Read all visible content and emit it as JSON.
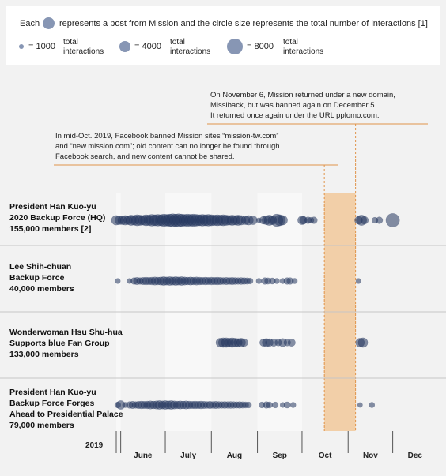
{
  "legend": {
    "each": "Each",
    "text": "represents a post from Mission and the circle size represents the total number of interactions [1]",
    "items": [
      {
        "size": 1000,
        "value": "= 1000",
        "line1": "total",
        "line2": "interactions"
      },
      {
        "size": 4000,
        "value": "= 4000",
        "line1": "total",
        "line2": "interactions"
      },
      {
        "size": 8000,
        "value": "= 8000",
        "line1": "total",
        "line2": "interactions"
      }
    ]
  },
  "annotations": {
    "november": [
      "On November 6, Mission returned under a new domain,",
      "Missiback, but was banned again on December 5.",
      "It returned once again under the URL pplomo.com."
    ],
    "october": [
      "In mid-Oct. 2019, Facebook banned Mission sites “mission-tw.com”",
      "and “new.mission.com”; old content can no longer be found through",
      "Facebook search, and new content cannot be shared."
    ]
  },
  "colors": {
    "dot": "#24365e",
    "ban_band": "#f2cfa8",
    "ban_line": "#e0944a",
    "month_band": "#f8f8f8",
    "background": "#f2f2f2"
  },
  "chart_data": {
    "type": "scatter",
    "x_unit": "date",
    "year_label": "2019",
    "months": [
      "June",
      "July",
      "Aug",
      "Sep",
      "Oct",
      "Nov",
      "Dec"
    ],
    "xlim": [
      "2019-05-29",
      "2019-12-31"
    ],
    "ban_period": {
      "start": "2019-10-16",
      "end": "2019-11-06"
    },
    "rows": [
      {
        "lines": [
          "President Han Kuo-yu",
          "2020 Backup Force (HQ)",
          "155,000 members [2]"
        ],
        "posts": [
          {
            "date": "2019-05-29",
            "size": 3000
          },
          {
            "date": "2019-05-31",
            "size": 2500
          },
          {
            "date": "2019-06-02",
            "size": 2500
          },
          {
            "date": "2019-06-04",
            "size": 3000
          },
          {
            "date": "2019-06-06",
            "size": 2500
          },
          {
            "date": "2019-06-08",
            "size": 3500
          },
          {
            "date": "2019-06-10",
            "size": 3000
          },
          {
            "date": "2019-06-12",
            "size": 4000
          },
          {
            "date": "2019-06-14",
            "size": 3500
          },
          {
            "date": "2019-06-16",
            "size": 3000
          },
          {
            "date": "2019-06-18",
            "size": 4000
          },
          {
            "date": "2019-06-20",
            "size": 3500
          },
          {
            "date": "2019-06-22",
            "size": 4500
          },
          {
            "date": "2019-06-24",
            "size": 4000
          },
          {
            "date": "2019-06-26",
            "size": 4500
          },
          {
            "date": "2019-06-28",
            "size": 4000
          },
          {
            "date": "2019-06-30",
            "size": 5000
          },
          {
            "date": "2019-07-02",
            "size": 4500
          },
          {
            "date": "2019-07-04",
            "size": 5000
          },
          {
            "date": "2019-07-06",
            "size": 5500
          },
          {
            "date": "2019-07-08",
            "size": 5000
          },
          {
            "date": "2019-07-10",
            "size": 5500
          },
          {
            "date": "2019-07-12",
            "size": 5000
          },
          {
            "date": "2019-07-14",
            "size": 4500
          },
          {
            "date": "2019-07-16",
            "size": 5000
          },
          {
            "date": "2019-07-18",
            "size": 4500
          },
          {
            "date": "2019-07-20",
            "size": 5000
          },
          {
            "date": "2019-07-22",
            "size": 4500
          },
          {
            "date": "2019-07-24",
            "size": 4000
          },
          {
            "date": "2019-07-26",
            "size": 4500
          },
          {
            "date": "2019-07-28",
            "size": 4000
          },
          {
            "date": "2019-07-30",
            "size": 4500
          },
          {
            "date": "2019-08-01",
            "size": 4000
          },
          {
            "date": "2019-08-03",
            "size": 3500
          },
          {
            "date": "2019-08-05",
            "size": 4000
          },
          {
            "date": "2019-08-07",
            "size": 3500
          },
          {
            "date": "2019-08-09",
            "size": 4000
          },
          {
            "date": "2019-08-11",
            "size": 3500
          },
          {
            "date": "2019-08-13",
            "size": 3000
          },
          {
            "date": "2019-08-15",
            "size": 3500
          },
          {
            "date": "2019-08-17",
            "size": 3000
          },
          {
            "date": "2019-08-19",
            "size": 3500
          },
          {
            "date": "2019-08-21",
            "size": 3000
          },
          {
            "date": "2019-08-24",
            "size": 2500
          },
          {
            "date": "2019-08-26",
            "size": 3000
          },
          {
            "date": "2019-08-29",
            "size": 2500
          },
          {
            "date": "2019-09-02",
            "size": 800
          },
          {
            "date": "2019-09-05",
            "size": 2000
          },
          {
            "date": "2019-09-07",
            "size": 2500
          },
          {
            "date": "2019-09-09",
            "size": 3500
          },
          {
            "date": "2019-09-11",
            "size": 2500
          },
          {
            "date": "2019-09-14",
            "size": 5000
          },
          {
            "date": "2019-09-16",
            "size": 4000
          },
          {
            "date": "2019-09-18",
            "size": 3000
          },
          {
            "date": "2019-10-01",
            "size": 2500
          },
          {
            "date": "2019-10-02",
            "size": 2000
          },
          {
            "date": "2019-10-05",
            "size": 1500
          },
          {
            "date": "2019-10-07",
            "size": 1200
          },
          {
            "date": "2019-10-09",
            "size": 1500
          },
          {
            "date": "2019-11-08",
            "size": 2000
          },
          {
            "date": "2019-11-10",
            "size": 3500
          },
          {
            "date": "2019-11-12",
            "size": 2000
          },
          {
            "date": "2019-11-19",
            "size": 1200
          },
          {
            "date": "2019-11-22",
            "size": 1500
          },
          {
            "date": "2019-12-01",
            "size": 6000
          }
        ]
      },
      {
        "lines": [
          "Lee Shih-chuan",
          "Backup Force",
          "40,000 members"
        ],
        "posts": [
          {
            "date": "2019-05-30",
            "size": 900
          },
          {
            "date": "2019-06-07",
            "size": 900
          },
          {
            "date": "2019-06-10",
            "size": 1500
          },
          {
            "date": "2019-06-12",
            "size": 1800
          },
          {
            "date": "2019-06-14",
            "size": 1500
          },
          {
            "date": "2019-06-16",
            "size": 1800
          },
          {
            "date": "2019-06-18",
            "size": 2000
          },
          {
            "date": "2019-06-20",
            "size": 1800
          },
          {
            "date": "2019-06-22",
            "size": 2000
          },
          {
            "date": "2019-06-24",
            "size": 2200
          },
          {
            "date": "2019-06-26",
            "size": 2000
          },
          {
            "date": "2019-06-28",
            "size": 2200
          },
          {
            "date": "2019-06-30",
            "size": 2500
          },
          {
            "date": "2019-07-02",
            "size": 2200
          },
          {
            "date": "2019-07-04",
            "size": 2500
          },
          {
            "date": "2019-07-06",
            "size": 2200
          },
          {
            "date": "2019-07-08",
            "size": 2500
          },
          {
            "date": "2019-07-10",
            "size": 2200
          },
          {
            "date": "2019-07-12",
            "size": 2500
          },
          {
            "date": "2019-07-14",
            "size": 2200
          },
          {
            "date": "2019-07-16",
            "size": 2000
          },
          {
            "date": "2019-07-18",
            "size": 2200
          },
          {
            "date": "2019-07-20",
            "size": 2000
          },
          {
            "date": "2019-07-22",
            "size": 2200
          },
          {
            "date": "2019-07-24",
            "size": 2000
          },
          {
            "date": "2019-07-26",
            "size": 1800
          },
          {
            "date": "2019-07-28",
            "size": 2000
          },
          {
            "date": "2019-07-30",
            "size": 1800
          },
          {
            "date": "2019-08-01",
            "size": 2000
          },
          {
            "date": "2019-08-03",
            "size": 1800
          },
          {
            "date": "2019-08-05",
            "size": 2000
          },
          {
            "date": "2019-08-07",
            "size": 1800
          },
          {
            "date": "2019-08-09",
            "size": 1600
          },
          {
            "date": "2019-08-11",
            "size": 1800
          },
          {
            "date": "2019-08-13",
            "size": 1600
          },
          {
            "date": "2019-08-15",
            "size": 1800
          },
          {
            "date": "2019-08-17",
            "size": 1600
          },
          {
            "date": "2019-08-19",
            "size": 1500
          },
          {
            "date": "2019-08-21",
            "size": 1600
          },
          {
            "date": "2019-08-23",
            "size": 1500
          },
          {
            "date": "2019-08-25",
            "size": 1400
          },
          {
            "date": "2019-08-27",
            "size": 1200
          },
          {
            "date": "2019-09-02",
            "size": 1000
          },
          {
            "date": "2019-09-06",
            "size": 1500
          },
          {
            "date": "2019-09-08",
            "size": 1400
          },
          {
            "date": "2019-09-11",
            "size": 1300
          },
          {
            "date": "2019-09-14",
            "size": 1000
          },
          {
            "date": "2019-09-18",
            "size": 1000
          },
          {
            "date": "2019-09-21",
            "size": 1500
          },
          {
            "date": "2019-09-23",
            "size": 1500
          },
          {
            "date": "2019-09-26",
            "size": 1000
          },
          {
            "date": "2019-11-08",
            "size": 900
          }
        ]
      },
      {
        "lines": [
          "Wonderwoman Hsu Shu-hua",
          "Supports blue Fan Group",
          "133,000 members"
        ],
        "posts": [
          {
            "date": "2019-08-07",
            "size": 2500
          },
          {
            "date": "2019-08-09",
            "size": 3000
          },
          {
            "date": "2019-08-11",
            "size": 3000
          },
          {
            "date": "2019-08-13",
            "size": 2500
          },
          {
            "date": "2019-08-15",
            "size": 3000
          },
          {
            "date": "2019-08-17",
            "size": 2500
          },
          {
            "date": "2019-08-19",
            "size": 2200
          },
          {
            "date": "2019-08-21",
            "size": 2500
          },
          {
            "date": "2019-08-23",
            "size": 2000
          },
          {
            "date": "2019-09-05",
            "size": 1800
          },
          {
            "date": "2019-09-07",
            "size": 2200
          },
          {
            "date": "2019-09-09",
            "size": 2000
          },
          {
            "date": "2019-09-12",
            "size": 1800
          },
          {
            "date": "2019-09-15",
            "size": 1500
          },
          {
            "date": "2019-09-18",
            "size": 2200
          },
          {
            "date": "2019-09-21",
            "size": 1500
          },
          {
            "date": "2019-09-24",
            "size": 1800
          },
          {
            "date": "2019-11-09",
            "size": 2500
          },
          {
            "date": "2019-11-11",
            "size": 3000
          }
        ]
      },
      {
        "lines": [
          "President Han Kuo-yu",
          "Backup Force Forges",
          "Ahead to Presidential Palace",
          "79,000 members"
        ],
        "posts": [
          {
            "date": "2019-05-30",
            "size": 1200
          },
          {
            "date": "2019-06-01",
            "size": 2500
          },
          {
            "date": "2019-06-04",
            "size": 1000
          },
          {
            "date": "2019-06-07",
            "size": 1500
          },
          {
            "date": "2019-06-09",
            "size": 1800
          },
          {
            "date": "2019-06-11",
            "size": 1500
          },
          {
            "date": "2019-06-13",
            "size": 1800
          },
          {
            "date": "2019-06-15",
            "size": 2000
          },
          {
            "date": "2019-06-17",
            "size": 1800
          },
          {
            "date": "2019-06-19",
            "size": 2000
          },
          {
            "date": "2019-06-21",
            "size": 2200
          },
          {
            "date": "2019-06-23",
            "size": 2000
          },
          {
            "date": "2019-06-25",
            "size": 2200
          },
          {
            "date": "2019-06-27",
            "size": 2500
          },
          {
            "date": "2019-06-29",
            "size": 2200
          },
          {
            "date": "2019-07-01",
            "size": 2500
          },
          {
            "date": "2019-07-03",
            "size": 2200
          },
          {
            "date": "2019-07-05",
            "size": 2500
          },
          {
            "date": "2019-07-07",
            "size": 2200
          },
          {
            "date": "2019-07-09",
            "size": 2000
          },
          {
            "date": "2019-07-11",
            "size": 2200
          },
          {
            "date": "2019-07-13",
            "size": 2000
          },
          {
            "date": "2019-07-15",
            "size": 2200
          },
          {
            "date": "2019-07-17",
            "size": 2000
          },
          {
            "date": "2019-07-19",
            "size": 1800
          },
          {
            "date": "2019-07-21",
            "size": 2000
          },
          {
            "date": "2019-07-23",
            "size": 1800
          },
          {
            "date": "2019-07-25",
            "size": 2000
          },
          {
            "date": "2019-07-27",
            "size": 1800
          },
          {
            "date": "2019-07-29",
            "size": 1600
          },
          {
            "date": "2019-07-31",
            "size": 1800
          },
          {
            "date": "2019-08-02",
            "size": 1600
          },
          {
            "date": "2019-08-04",
            "size": 1800
          },
          {
            "date": "2019-08-06",
            "size": 1600
          },
          {
            "date": "2019-08-08",
            "size": 1500
          },
          {
            "date": "2019-08-10",
            "size": 1600
          },
          {
            "date": "2019-08-12",
            "size": 1500
          },
          {
            "date": "2019-08-14",
            "size": 1600
          },
          {
            "date": "2019-08-16",
            "size": 1500
          },
          {
            "date": "2019-08-18",
            "size": 1400
          },
          {
            "date": "2019-08-20",
            "size": 1500
          },
          {
            "date": "2019-08-22",
            "size": 1400
          },
          {
            "date": "2019-08-24",
            "size": 1300
          },
          {
            "date": "2019-08-26",
            "size": 1200
          },
          {
            "date": "2019-09-04",
            "size": 1200
          },
          {
            "date": "2019-09-07",
            "size": 1500
          },
          {
            "date": "2019-09-09",
            "size": 1300
          },
          {
            "date": "2019-09-13",
            "size": 1200
          },
          {
            "date": "2019-09-18",
            "size": 900
          },
          {
            "date": "2019-09-21",
            "size": 1300
          },
          {
            "date": "2019-09-25",
            "size": 1000
          },
          {
            "date": "2019-11-09",
            "size": 800
          },
          {
            "date": "2019-11-17",
            "size": 1000
          }
        ]
      }
    ]
  }
}
